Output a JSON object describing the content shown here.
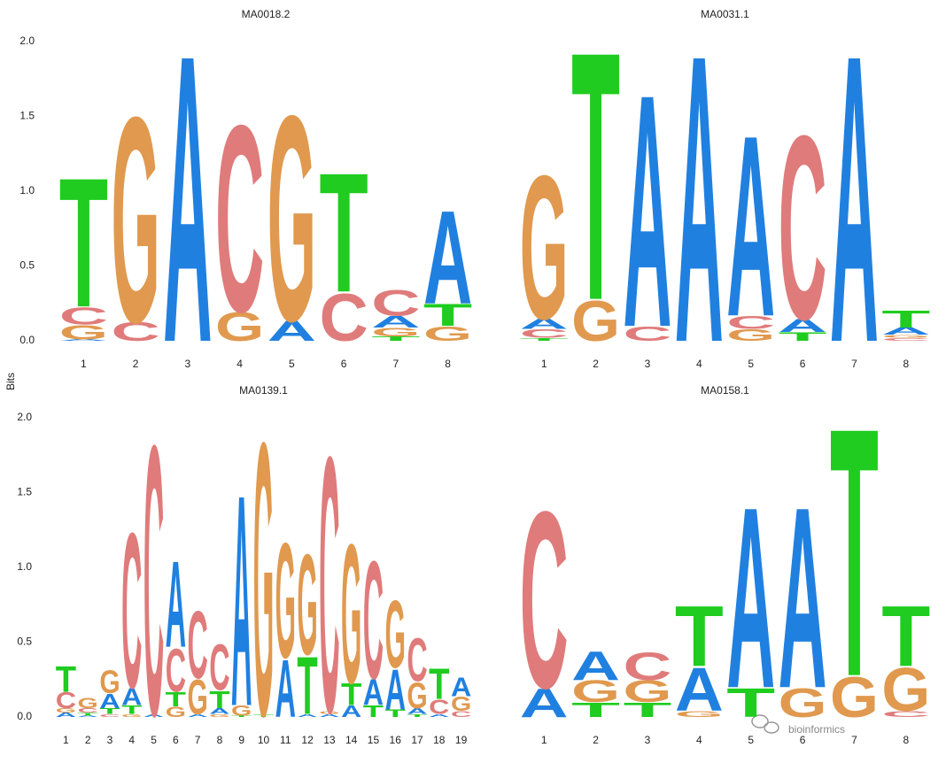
{
  "y_label": "Bits",
  "watermark": "bioinformics",
  "chart_data": [
    {
      "type": "logo",
      "title": "MA0018.2",
      "categories": [
        "1",
        "2",
        "3",
        "4",
        "5",
        "6",
        "7",
        "8"
      ],
      "ylim": [
        0,
        2
      ],
      "yticks": [
        {
          "value": 0,
          "label": "0.0"
        },
        {
          "value": 0.5,
          "label": "0.5"
        },
        {
          "value": 1,
          "label": "1.0"
        },
        {
          "value": 1.5,
          "label": "1.5"
        },
        {
          "value": 2,
          "label": "2.0"
        }
      ],
      "series": [
        {
          "name": "A",
          "color": "#2080e0",
          "values": [
            0.01,
            0,
            2.0,
            0,
            0.14,
            0,
            0.08,
            0.65
          ]
        },
        {
          "name": "C",
          "color": "#e07b7b",
          "values": [
            0.12,
            0.13,
            0,
            1.3,
            0,
            0.33,
            0.18,
            0
          ]
        },
        {
          "name": "G",
          "color": "#e0994e",
          "values": [
            0.1,
            1.43,
            0,
            0.2,
            1.43,
            0,
            0.06,
            0.1
          ]
        },
        {
          "name": "T",
          "color": "#1fcc1f",
          "values": [
            0.9,
            0,
            0,
            0,
            0,
            0.83,
            0.03,
            0.15
          ]
        }
      ]
    },
    {
      "type": "logo",
      "title": "MA0031.1",
      "categories": [
        "1",
        "2",
        "3",
        "4",
        "5",
        "6",
        "7",
        "8"
      ],
      "ylim": [
        0,
        2
      ],
      "yticks": [],
      "series": [
        {
          "name": "A",
          "color": "#2080e0",
          "values": [
            0.07,
            0,
            1.62,
            2.0,
            1.26,
            0.09,
            2.0,
            0.05
          ]
        },
        {
          "name": "C",
          "color": "#e07b7b",
          "values": [
            0.06,
            0,
            0.1,
            0,
            0.09,
            1.28,
            0,
            0.02
          ]
        },
        {
          "name": "G",
          "color": "#e0994e",
          "values": [
            1.0,
            0.28,
            0,
            0,
            0.08,
            0,
            0,
            0.02
          ]
        },
        {
          "name": "T",
          "color": "#1fcc1f",
          "values": [
            0.02,
            1.73,
            0,
            0,
            0,
            0.06,
            0,
            0.12
          ]
        }
      ]
    },
    {
      "type": "logo",
      "title": "MA0139.1",
      "categories": [
        "1",
        "2",
        "3",
        "4",
        "5",
        "6",
        "7",
        "8",
        "9",
        "10",
        "11",
        "12",
        "13",
        "14",
        "15",
        "16",
        "17",
        "18",
        "19"
      ],
      "ylim": [
        0,
        2
      ],
      "yticks": [
        {
          "value": 0,
          "label": "0.0"
        },
        {
          "value": 0.5,
          "label": "0.5"
        },
        {
          "value": 1,
          "label": "1.0"
        },
        {
          "value": 1.5,
          "label": "1.5"
        },
        {
          "value": 2,
          "label": "2.0"
        }
      ],
      "series": [
        {
          "name": "A",
          "color": "#2080e0",
          "values": [
            0.03,
            0.01,
            0.1,
            0.12,
            0.02,
            0.6,
            0.02,
            0.04,
            1.47,
            0,
            0.4,
            0.02,
            0.02,
            0.08,
            0.18,
            0.28,
            0.04,
            0.02,
            0.13
          ]
        },
        {
          "name": "C",
          "color": "#e07b7b",
          "values": [
            0.11,
            0.03,
            0.02,
            1.08,
            1.88,
            0.3,
            0.47,
            0.32,
            0,
            0,
            0,
            0,
            1.78,
            0,
            0.82,
            0,
            0.3,
            0.1,
            0.04
          ]
        },
        {
          "name": "G",
          "color": "#e0994e",
          "values": [
            0.03,
            0.07,
            0.16,
            0.02,
            0,
            0.07,
            0.24,
            0.02,
            0.07,
            1.9,
            0.8,
            0.7,
            0.02,
            0.97,
            0,
            0.47,
            0.18,
            0,
            0.1
          ]
        },
        {
          "name": "T",
          "color": "#1fcc1f",
          "values": [
            0.18,
            0.02,
            0.04,
            0.06,
            0,
            0.1,
            0,
            0.12,
            0.01,
            0.02,
            0,
            0.4,
            0,
            0.15,
            0.08,
            0.05,
            0.02,
            0.21,
            0
          ]
        }
      ]
    },
    {
      "type": "logo",
      "title": "MA0158.1",
      "categories": [
        "1",
        "2",
        "3",
        "4",
        "5",
        "6",
        "7",
        "8"
      ],
      "ylim": [
        0,
        2
      ],
      "yticks": [],
      "series": [
        {
          "name": "A",
          "color": "#2080e0",
          "values": [
            0.2,
            0.2,
            0,
            0.3,
            1.26,
            1.26,
            0,
            0
          ]
        },
        {
          "name": "C",
          "color": "#e07b7b",
          "values": [
            1.23,
            0,
            0.19,
            0,
            0,
            0,
            0,
            0.04
          ]
        },
        {
          "name": "G",
          "color": "#e0994e",
          "values": [
            0,
            0.15,
            0.15,
            0.04,
            0,
            0.2,
            0.28,
            0.3
          ]
        },
        {
          "name": "T",
          "color": "#1fcc1f",
          "values": [
            0,
            0.1,
            0.1,
            0.42,
            0.2,
            0,
            1.73,
            0.42
          ]
        }
      ]
    }
  ]
}
